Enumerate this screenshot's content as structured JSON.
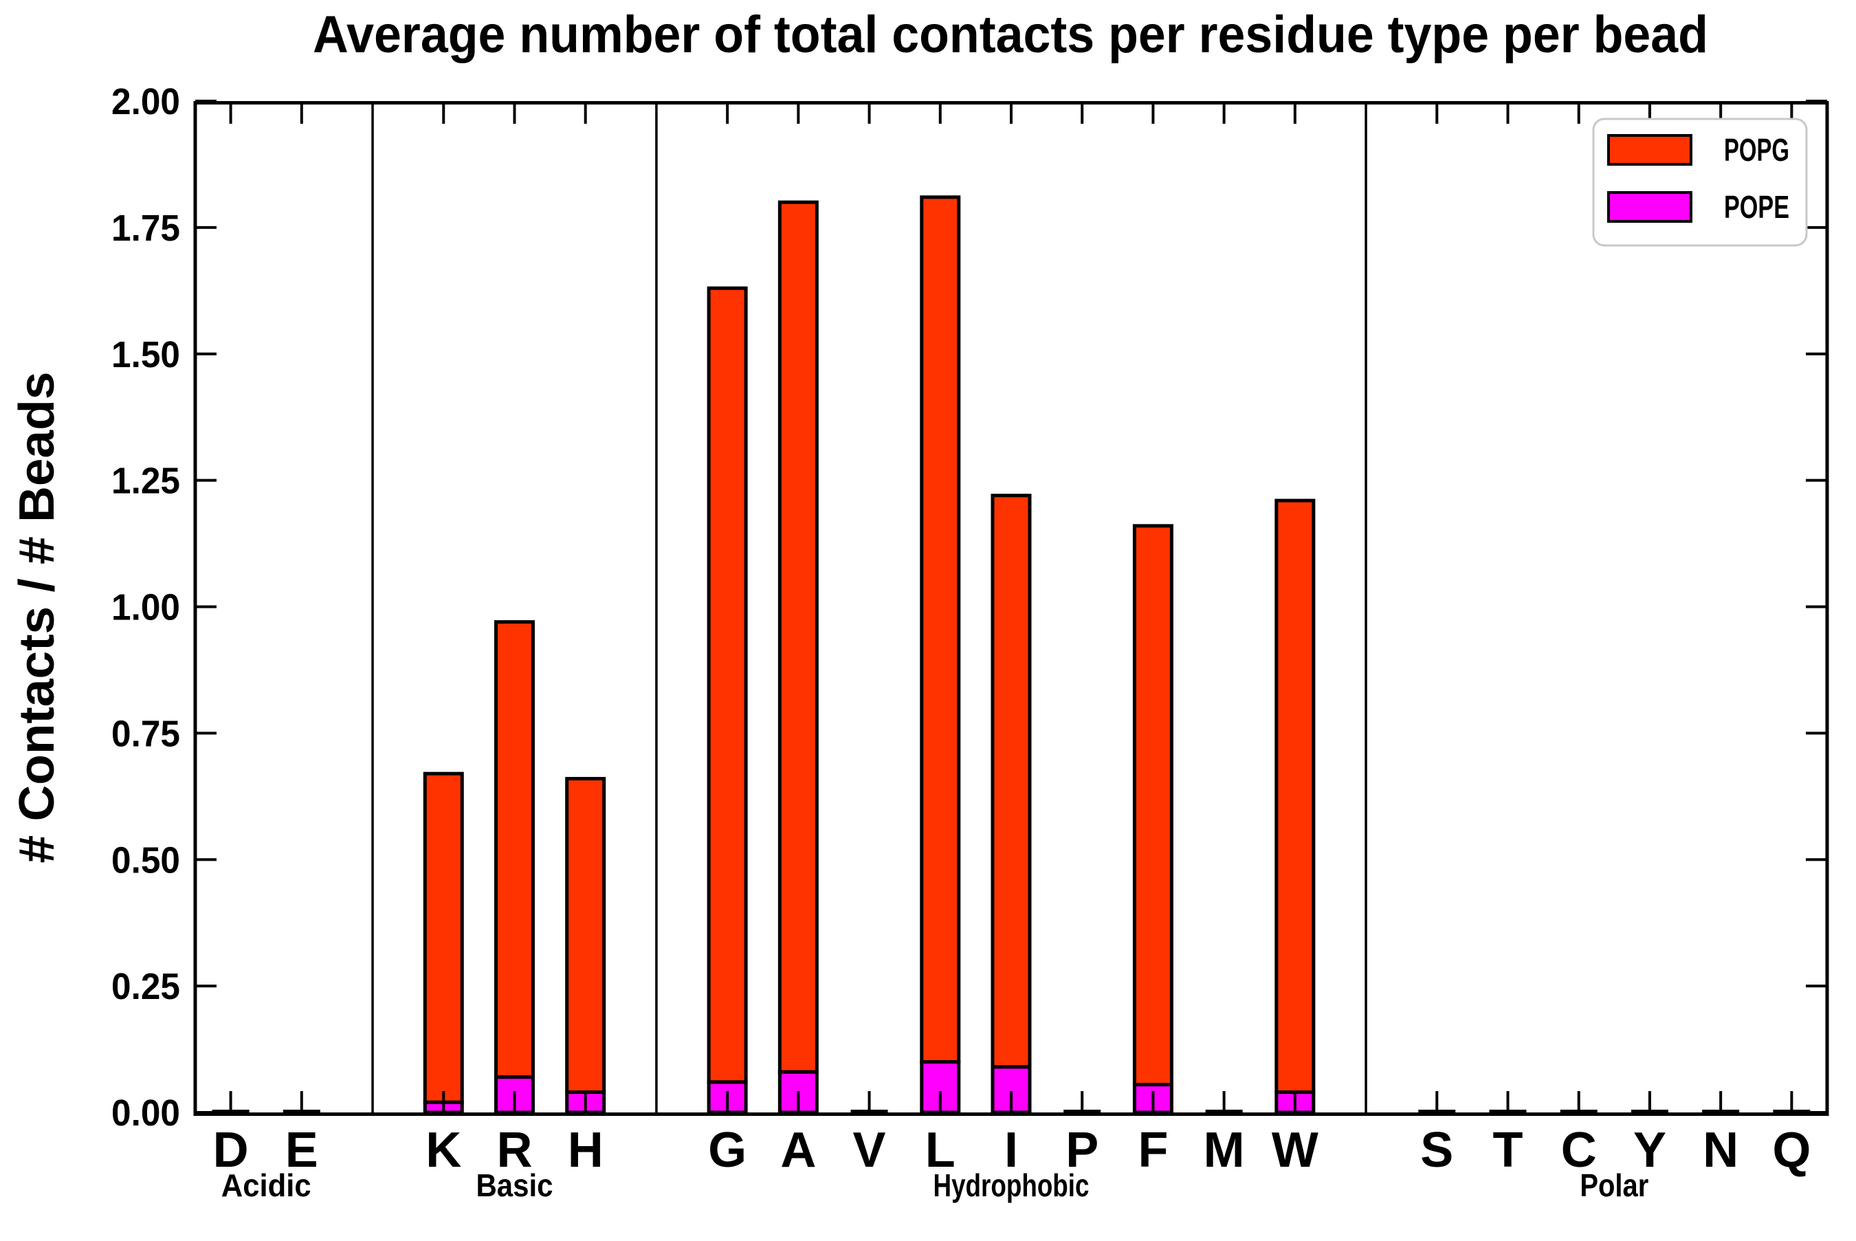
{
  "title": "Average number of total contacts per residue type per bead",
  "ylabel": "# Contacts / # Beads",
  "yticks": [
    "0.00",
    "0.25",
    "0.50",
    "0.75",
    "1.00",
    "1.25",
    "1.50",
    "1.75",
    "2.00"
  ],
  "legend": {
    "items": [
      {
        "label": "POPG",
        "color": "#ff3300"
      },
      {
        "label": "POPE",
        "color": "#ff00ff"
      }
    ]
  },
  "colors": {
    "popg": "#ff3300",
    "pope": "#ff00ff",
    "axis": "#000000",
    "legend_border": "#c8c8c8",
    "background": "#ffffff"
  },
  "chart_data": {
    "type": "bar",
    "stacked": true,
    "title": "Average number of total contacts per residue type per bead",
    "ylabel": "# Contacts / # Beads",
    "xlabel": "",
    "ylim": [
      0,
      2.0
    ],
    "ytick_step": 0.25,
    "grid": false,
    "legend_position": "upper right",
    "series_names": [
      "POPG",
      "POPE"
    ],
    "category_tick_length_data_units": 0.042,
    "groups": [
      {
        "label": "Acidic",
        "categories": [
          "D",
          "E"
        ],
        "POPE": [
          0.002,
          0.002
        ],
        "POPG": [
          0.003,
          0.003
        ],
        "totals": [
          0.005,
          0.005
        ]
      },
      {
        "label": "Basic",
        "categories": [
          "K",
          "R",
          "H"
        ],
        "POPE": [
          0.02,
          0.07,
          0.04
        ],
        "POPG": [
          0.65,
          0.9,
          0.62
        ],
        "totals": [
          0.67,
          0.97,
          0.66
        ]
      },
      {
        "label": "Hydrophobic",
        "categories": [
          "G",
          "A",
          "V",
          "L",
          "I",
          "P",
          "F",
          "M",
          "W"
        ],
        "POPE": [
          0.06,
          0.08,
          0.002,
          0.1,
          0.09,
          0.002,
          0.055,
          0.002,
          0.04
        ],
        "POPG": [
          1.57,
          1.72,
          0.003,
          1.71,
          1.13,
          0.003,
          1.105,
          0.003,
          1.17
        ],
        "totals": [
          1.63,
          1.8,
          0.005,
          1.81,
          1.22,
          0.005,
          1.16,
          0.005,
          1.21
        ]
      },
      {
        "label": "Polar",
        "categories": [
          "S",
          "T",
          "C",
          "Y",
          "N",
          "Q"
        ],
        "POPE": [
          0.002,
          0.002,
          0.002,
          0.002,
          0.002,
          0.002
        ],
        "POPG": [
          0.003,
          0.003,
          0.003,
          0.003,
          0.003,
          0.003
        ],
        "totals": [
          0.005,
          0.005,
          0.005,
          0.005,
          0.005,
          0.005
        ]
      }
    ]
  }
}
